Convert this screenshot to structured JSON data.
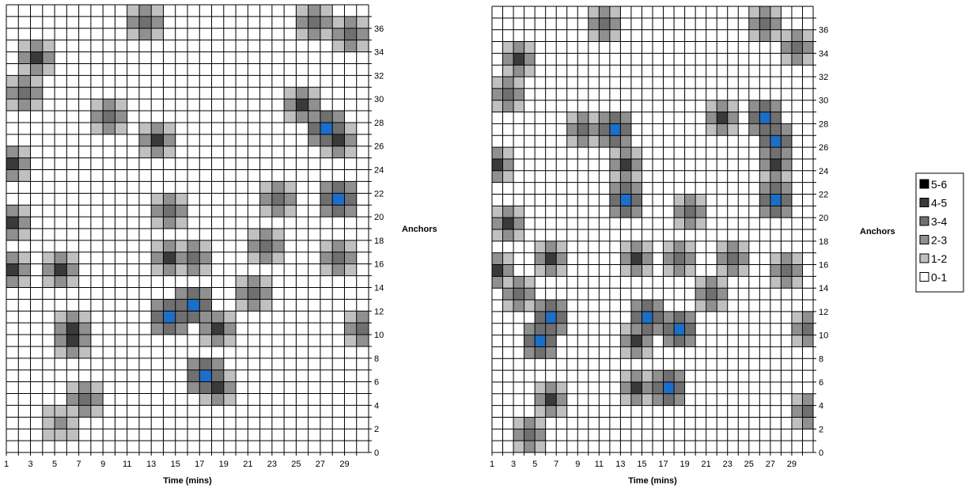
{
  "chart_data": [
    {
      "type": "heatmap",
      "xlabel": "Time (mins)",
      "ylabel": "Anchors",
      "x_ticks": [
        1,
        3,
        5,
        7,
        9,
        11,
        13,
        15,
        17,
        19,
        21,
        23,
        25,
        27,
        29
      ],
      "y_ticks": [
        0,
        2,
        4,
        6,
        8,
        10,
        12,
        14,
        16,
        18,
        20,
        22,
        24,
        26,
        28,
        30,
        32,
        34,
        36
      ],
      "xlim": [
        1,
        30
      ],
      "ylim": [
        0,
        37
      ],
      "grid": true,
      "hotspots": [
        {
          "x": 3,
          "y": 33,
          "value": 4.5
        },
        {
          "x": 1,
          "y": 24,
          "value": 4.5
        },
        {
          "x": 2,
          "y": 30,
          "value": 3.5
        },
        {
          "x": 1,
          "y": 19,
          "value": 4.5
        },
        {
          "x": 1,
          "y": 15,
          "value": 4.5
        },
        {
          "x": 5,
          "y": 15,
          "value": 4.5
        },
        {
          "x": 6,
          "y": 10,
          "value": 4.5
        },
        {
          "x": 6,
          "y": 9,
          "value": 4.5
        },
        {
          "x": 7,
          "y": 4,
          "value": 3.5
        },
        {
          "x": 5,
          "y": 2,
          "value": 2.5
        },
        {
          "x": 9,
          "y": 28,
          "value": 3.5
        },
        {
          "x": 13,
          "y": 26,
          "value": 4.5
        },
        {
          "x": 14,
          "y": 16,
          "value": 4.5
        },
        {
          "x": 14,
          "y": 11,
          "value": 5.5
        },
        {
          "x": 16,
          "y": 12,
          "value": 5.5
        },
        {
          "x": 18,
          "y": 10,
          "value": 4.5
        },
        {
          "x": 17,
          "y": 6,
          "value": 5.5
        },
        {
          "x": 18,
          "y": 5,
          "value": 4.5
        },
        {
          "x": 14,
          "y": 20,
          "value": 3.5
        },
        {
          "x": 27,
          "y": 27,
          "value": 5.5
        },
        {
          "x": 28,
          "y": 26,
          "value": 4.5
        },
        {
          "x": 28,
          "y": 21,
          "value": 5.5
        },
        {
          "x": 26,
          "y": 36,
          "value": 3.5
        },
        {
          "x": 29,
          "y": 35,
          "value": 3.5
        },
        {
          "x": 12,
          "y": 36,
          "value": 3.5
        },
        {
          "x": 16,
          "y": 16,
          "value": 3.5
        },
        {
          "x": 22,
          "y": 17,
          "value": 3.5
        },
        {
          "x": 21,
          "y": 13,
          "value": 3.5
        },
        {
          "x": 28,
          "y": 16,
          "value": 3.5
        },
        {
          "x": 30,
          "y": 10,
          "value": 3.5
        },
        {
          "x": 25,
          "y": 29,
          "value": 4.5
        },
        {
          "x": 23,
          "y": 21,
          "value": 3.5
        }
      ]
    },
    {
      "type": "heatmap",
      "xlabel": "Time (mins)",
      "ylabel": "Anchors",
      "x_ticks": [
        1,
        3,
        5,
        7,
        9,
        11,
        13,
        15,
        17,
        19,
        21,
        23,
        25,
        27,
        29
      ],
      "y_ticks": [
        0,
        2,
        4,
        6,
        8,
        10,
        12,
        14,
        16,
        18,
        20,
        22,
        24,
        26,
        28,
        30,
        32,
        34,
        36
      ],
      "xlim": [
        1,
        30
      ],
      "ylim": [
        0,
        37
      ],
      "grid": true,
      "hotspots": [
        {
          "x": 3,
          "y": 33,
          "value": 4.5
        },
        {
          "x": 2,
          "y": 30,
          "value": 3.5
        },
        {
          "x": 1,
          "y": 24,
          "value": 4.5
        },
        {
          "x": 2,
          "y": 19,
          "value": 4.5
        },
        {
          "x": 1,
          "y": 15,
          "value": 4.5
        },
        {
          "x": 6,
          "y": 16,
          "value": 4.5
        },
        {
          "x": 6,
          "y": 11,
          "value": 5.5
        },
        {
          "x": 5,
          "y": 9,
          "value": 5.5
        },
        {
          "x": 6,
          "y": 4,
          "value": 4.5
        },
        {
          "x": 4,
          "y": 1,
          "value": 3.5
        },
        {
          "x": 12,
          "y": 27,
          "value": 5.5
        },
        {
          "x": 9,
          "y": 27,
          "value": 3.5
        },
        {
          "x": 13,
          "y": 24,
          "value": 4.5
        },
        {
          "x": 13,
          "y": 21,
          "value": 5.5
        },
        {
          "x": 14,
          "y": 16,
          "value": 4.5
        },
        {
          "x": 15,
          "y": 11,
          "value": 5.5
        },
        {
          "x": 18,
          "y": 10,
          "value": 5.5
        },
        {
          "x": 14,
          "y": 9,
          "value": 4.5
        },
        {
          "x": 17,
          "y": 5,
          "value": 5.5
        },
        {
          "x": 14,
          "y": 5,
          "value": 4.5
        },
        {
          "x": 26,
          "y": 28,
          "value": 5.5
        },
        {
          "x": 27,
          "y": 26,
          "value": 5.5
        },
        {
          "x": 27,
          "y": 24,
          "value": 4.5
        },
        {
          "x": 27,
          "y": 21,
          "value": 5.5
        },
        {
          "x": 26,
          "y": 36,
          "value": 3.5
        },
        {
          "x": 29,
          "y": 34,
          "value": 3.5
        },
        {
          "x": 11,
          "y": 36,
          "value": 3.5
        },
        {
          "x": 22,
          "y": 28,
          "value": 4.5
        },
        {
          "x": 18,
          "y": 16,
          "value": 3.5
        },
        {
          "x": 23,
          "y": 16,
          "value": 3.5
        },
        {
          "x": 28,
          "y": 15,
          "value": 3.5
        },
        {
          "x": 21,
          "y": 13,
          "value": 3.5
        },
        {
          "x": 30,
          "y": 10,
          "value": 3.5
        },
        {
          "x": 30,
          "y": 3,
          "value": 3.5
        },
        {
          "x": 19,
          "y": 20,
          "value": 3.5
        },
        {
          "x": 3,
          "y": 13,
          "value": 3.5
        }
      ]
    }
  ],
  "legend": {
    "entries": [
      {
        "label": "5-6",
        "color": "#000000"
      },
      {
        "label": "4-5",
        "color": "#3a3a3a"
      },
      {
        "label": "3-4",
        "color": "#707070"
      },
      {
        "label": "2-3",
        "color": "#909090"
      },
      {
        "label": "1-2",
        "color": "#c0c0c0"
      },
      {
        "label": "0-1",
        "color": "#ffffff"
      }
    ]
  },
  "colors": {
    "peak": "#1c6fc9",
    "grid": "#000000",
    "background": "#ffffff"
  }
}
